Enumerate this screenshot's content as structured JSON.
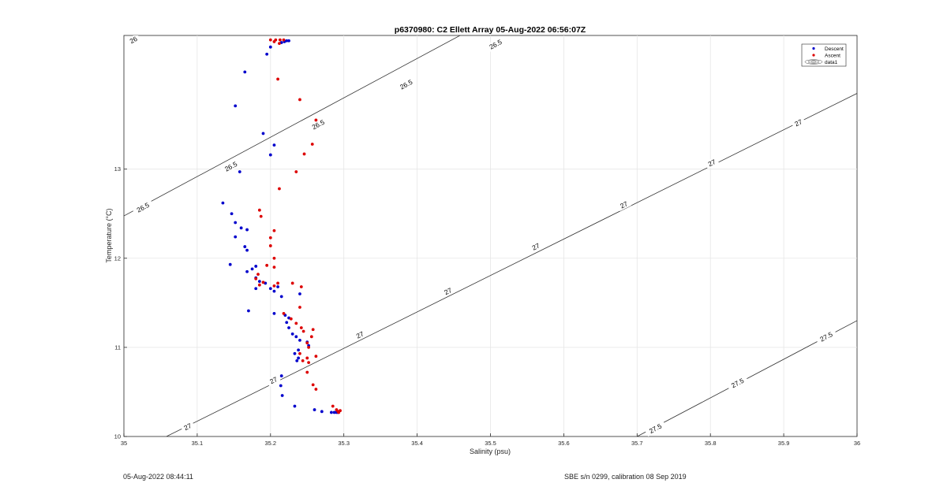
{
  "chart_data": {
    "type": "scatter",
    "title": "p6370980: C2 Ellett Array 05-Aug-2022 06:56:07Z",
    "xlabel": "Salinity (psu)",
    "ylabel": "Temperature (°C)",
    "xlim": [
      35,
      36
    ],
    "ylim": [
      10,
      14.5
    ],
    "xticks": [
      35,
      35.1,
      35.2,
      35.3,
      35.4,
      35.5,
      35.6,
      35.7,
      35.8,
      35.9,
      36
    ],
    "xtick_labels": [
      "35",
      "35.1",
      "35.2",
      "35.3",
      "35.4",
      "35.5",
      "35.6",
      "35.7",
      "35.8",
      "35.9",
      "36"
    ],
    "yticks": [
      10,
      11,
      12,
      13
    ],
    "ytick_labels": [
      "10",
      "11",
      "12",
      "13"
    ],
    "grid": true,
    "legend_position": "top-right",
    "legend": [
      {
        "name": "Descent",
        "color": "#0000cc",
        "marker": "dot"
      },
      {
        "name": "Ascent",
        "color": "#dd0000",
        "marker": "dot"
      },
      {
        "name": "data1",
        "color": "#444444",
        "marker": "contour"
      }
    ],
    "series": [
      {
        "name": "Descent",
        "color": "#0000cc",
        "points": [
          [
            35.222,
            14.44
          ],
          [
            35.225,
            14.44
          ],
          [
            35.219,
            14.43
          ],
          [
            35.215,
            14.42
          ],
          [
            35.2,
            14.37
          ],
          [
            35.195,
            14.29
          ],
          [
            35.165,
            14.09
          ],
          [
            35.152,
            13.71
          ],
          [
            35.19,
            13.4
          ],
          [
            35.205,
            13.27
          ],
          [
            35.2,
            13.16
          ],
          [
            35.158,
            12.97
          ],
          [
            35.135,
            12.62
          ],
          [
            35.147,
            12.5
          ],
          [
            35.152,
            12.4
          ],
          [
            35.16,
            12.34
          ],
          [
            35.168,
            12.32
          ],
          [
            35.152,
            12.24
          ],
          [
            35.165,
            12.13
          ],
          [
            35.168,
            12.09
          ],
          [
            35.145,
            11.93
          ],
          [
            35.168,
            11.85
          ],
          [
            35.175,
            11.88
          ],
          [
            35.18,
            11.91
          ],
          [
            35.18,
            11.78
          ],
          [
            35.185,
            11.74
          ],
          [
            35.18,
            11.66
          ],
          [
            35.193,
            11.72
          ],
          [
            35.2,
            11.66
          ],
          [
            35.205,
            11.63
          ],
          [
            35.21,
            11.68
          ],
          [
            35.215,
            11.57
          ],
          [
            35.17,
            11.41
          ],
          [
            35.205,
            11.38
          ],
          [
            35.22,
            11.36
          ],
          [
            35.225,
            11.33
          ],
          [
            35.222,
            11.28
          ],
          [
            35.225,
            11.22
          ],
          [
            35.23,
            11.15
          ],
          [
            35.235,
            11.12
          ],
          [
            35.24,
            11.08
          ],
          [
            35.25,
            11.06
          ],
          [
            35.252,
            11.02
          ],
          [
            35.238,
            10.97
          ],
          [
            35.233,
            10.93
          ],
          [
            35.238,
            10.88
          ],
          [
            35.236,
            10.85
          ],
          [
            35.215,
            10.68
          ],
          [
            35.214,
            10.57
          ],
          [
            35.216,
            10.46
          ],
          [
            35.233,
            10.34
          ],
          [
            35.26,
            10.3
          ],
          [
            35.27,
            10.28
          ],
          [
            35.283,
            10.27
          ],
          [
            35.287,
            10.27
          ],
          [
            35.29,
            10.27
          ],
          [
            35.292,
            10.27
          ],
          [
            35.24,
            11.6
          ]
        ]
      },
      {
        "name": "Ascent",
        "color": "#dd0000",
        "points": [
          [
            35.2,
            14.45
          ],
          [
            35.207,
            14.45
          ],
          [
            35.213,
            14.45
          ],
          [
            35.218,
            14.45
          ],
          [
            35.205,
            14.43
          ],
          [
            35.212,
            14.41
          ],
          [
            35.21,
            14.01
          ],
          [
            35.24,
            13.78
          ],
          [
            35.262,
            13.55
          ],
          [
            35.257,
            13.28
          ],
          [
            35.246,
            13.17
          ],
          [
            35.235,
            12.97
          ],
          [
            35.212,
            12.78
          ],
          [
            35.185,
            12.54
          ],
          [
            35.187,
            12.47
          ],
          [
            35.205,
            12.31
          ],
          [
            35.2,
            12.23
          ],
          [
            35.2,
            12.14
          ],
          [
            35.205,
            12.0
          ],
          [
            35.195,
            11.92
          ],
          [
            35.205,
            11.9
          ],
          [
            35.183,
            11.82
          ],
          [
            35.18,
            11.77
          ],
          [
            35.19,
            11.73
          ],
          [
            35.185,
            11.7
          ],
          [
            35.21,
            11.72
          ],
          [
            35.205,
            11.69
          ],
          [
            35.23,
            11.72
          ],
          [
            35.242,
            11.68
          ],
          [
            35.24,
            11.45
          ],
          [
            35.218,
            11.38
          ],
          [
            35.228,
            11.32
          ],
          [
            35.235,
            11.27
          ],
          [
            35.242,
            11.22
          ],
          [
            35.258,
            11.2
          ],
          [
            35.245,
            11.18
          ],
          [
            35.256,
            11.12
          ],
          [
            35.25,
            11.05
          ],
          [
            35.252,
            11.0
          ],
          [
            35.24,
            10.93
          ],
          [
            35.25,
            10.88
          ],
          [
            35.262,
            10.9
          ],
          [
            35.252,
            10.83
          ],
          [
            35.244,
            10.85
          ],
          [
            35.25,
            10.72
          ],
          [
            35.258,
            10.58
          ],
          [
            35.262,
            10.53
          ],
          [
            35.285,
            10.34
          ],
          [
            35.29,
            10.3
          ],
          [
            35.292,
            10.28
          ],
          [
            35.295,
            10.29
          ],
          [
            35.293,
            10.27
          ]
        ]
      }
    ],
    "contours": [
      {
        "label": "26",
        "line": [
          [
            34.986,
            14.447
          ],
          [
            35.175,
            15.295
          ]
        ],
        "labels_at": [
          [
            35.013,
            14.45
          ]
        ]
      },
      {
        "label": "26.5",
        "line": [
          [
            35.0,
            12.475
          ],
          [
            35.685,
            15.5
          ]
        ],
        "labels_at": [
          [
            35.026,
            12.57
          ],
          [
            35.146,
            13.03
          ],
          [
            35.265,
            13.5
          ],
          [
            35.385,
            13.95
          ],
          [
            35.507,
            14.4
          ],
          [
            35.627,
            14.84
          ]
        ]
      },
      {
        "label": "27",
        "line": [
          [
            35.058,
            10.0
          ],
          [
            36.0,
            13.85
          ]
        ],
        "labels_at": [
          [
            35.087,
            10.11
          ],
          [
            35.204,
            10.63
          ],
          [
            35.322,
            11.14
          ],
          [
            35.442,
            11.63
          ],
          [
            35.562,
            12.13
          ],
          [
            35.682,
            12.6
          ],
          [
            35.802,
            13.07
          ],
          [
            35.92,
            13.52
          ]
        ]
      },
      {
        "label": "27.5",
        "line": [
          [
            35.7,
            10.0
          ],
          [
            36.0,
            11.3
          ]
        ],
        "labels_at": [
          [
            35.725,
            10.09
          ],
          [
            35.837,
            10.6
          ],
          [
            35.958,
            11.12
          ]
        ]
      }
    ]
  },
  "footer": {
    "left": "05-Aug-2022 08:44:11",
    "right": "SBE s/n 0299, calibration 08 Sep 2019"
  }
}
